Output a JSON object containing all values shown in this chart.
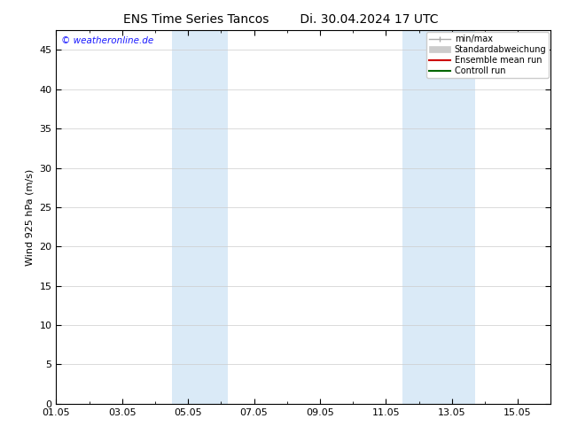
{
  "title_left": "ENS Time Series Tancos",
  "title_right": "Di. 30.04.2024 17 UTC",
  "ylabel": "Wind 925 hPa (m/s)",
  "watermark": "© weatheronline.de",
  "ylim": [
    0,
    47.5
  ],
  "yticks": [
    0,
    5,
    10,
    15,
    20,
    25,
    30,
    35,
    40,
    45
  ],
  "xlim": [
    0,
    15
  ],
  "xtick_labels": [
    "01.05",
    "03.05",
    "05.05",
    "07.05",
    "09.05",
    "11.05",
    "13.05",
    "15.05"
  ],
  "xtick_positions": [
    0,
    2,
    4,
    6,
    8,
    10,
    12,
    14
  ],
  "shade_bands": [
    {
      "start": 3.5,
      "end": 5.2
    },
    {
      "start": 10.5,
      "end": 12.7
    }
  ],
  "shade_color": "#daeaf7",
  "background_color": "#ffffff",
  "plot_bg_color": "#ffffff",
  "legend_items": [
    {
      "label": "min/max",
      "color": "#aaaaaa",
      "style": "minmax"
    },
    {
      "label": "Standardabweichung",
      "color": "#cccccc",
      "style": "std"
    },
    {
      "label": "Ensemble mean run",
      "color": "#cc0000",
      "style": "line"
    },
    {
      "label": "Controll run",
      "color": "#006600",
      "style": "line"
    }
  ],
  "title_fontsize": 10,
  "axis_fontsize": 8,
  "tick_fontsize": 8,
  "watermark_color": "#1a1aff",
  "watermark_fontsize": 7.5,
  "grid_color": "#cccccc",
  "spine_color": "#000000",
  "legend_fontsize": 7
}
